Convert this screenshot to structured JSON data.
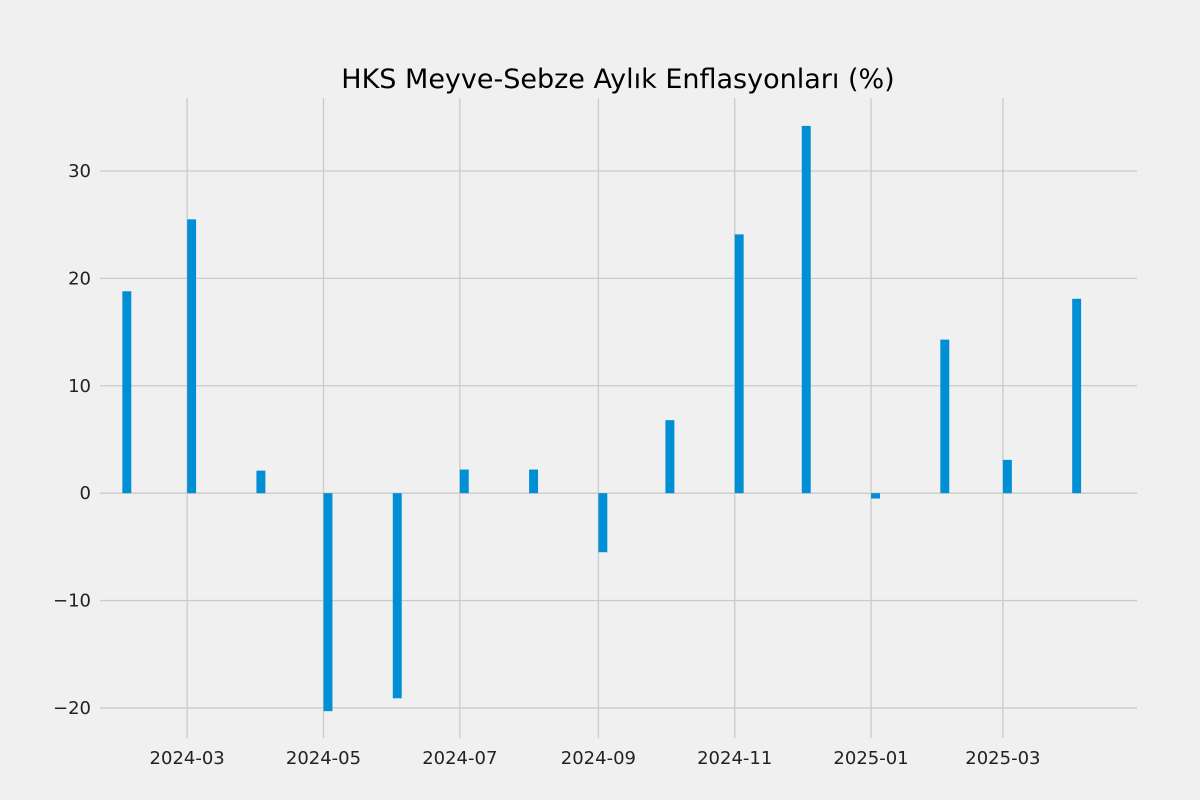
{
  "chart_data": {
    "type": "bar",
    "title": "HKS Meyve-Sebze Aylık Enflasyonları (%)",
    "xlabel": "",
    "ylabel": "",
    "x_type": "date",
    "categories": [
      "2024-02",
      "2024-03",
      "2024-04",
      "2024-05",
      "2024-06",
      "2024-07",
      "2024-08",
      "2024-09",
      "2024-10",
      "2024-11",
      "2024-12",
      "2025-01",
      "2025-02",
      "2025-03",
      "2025-04"
    ],
    "values": [
      18.8,
      25.5,
      2.1,
      -20.3,
      -19.1,
      2.2,
      2.2,
      -5.5,
      6.8,
      24.1,
      34.2,
      -0.5,
      14.3,
      3.1,
      18.1
    ],
    "xlim": [
      "2024-01-22",
      "2025-04-30"
    ],
    "ylim": [
      -22.8,
      36.8
    ],
    "x_ticks": [
      "2024-03",
      "2024-05",
      "2024-07",
      "2024-09",
      "2024-11",
      "2025-01",
      "2025-03"
    ],
    "y_ticks": [
      -20,
      -10,
      0,
      10,
      20,
      30
    ],
    "grid": true,
    "legend": "none",
    "colors": {
      "bar": "#008fd5",
      "grid": "#cbcbcb",
      "background": "#f0f0f0"
    }
  }
}
